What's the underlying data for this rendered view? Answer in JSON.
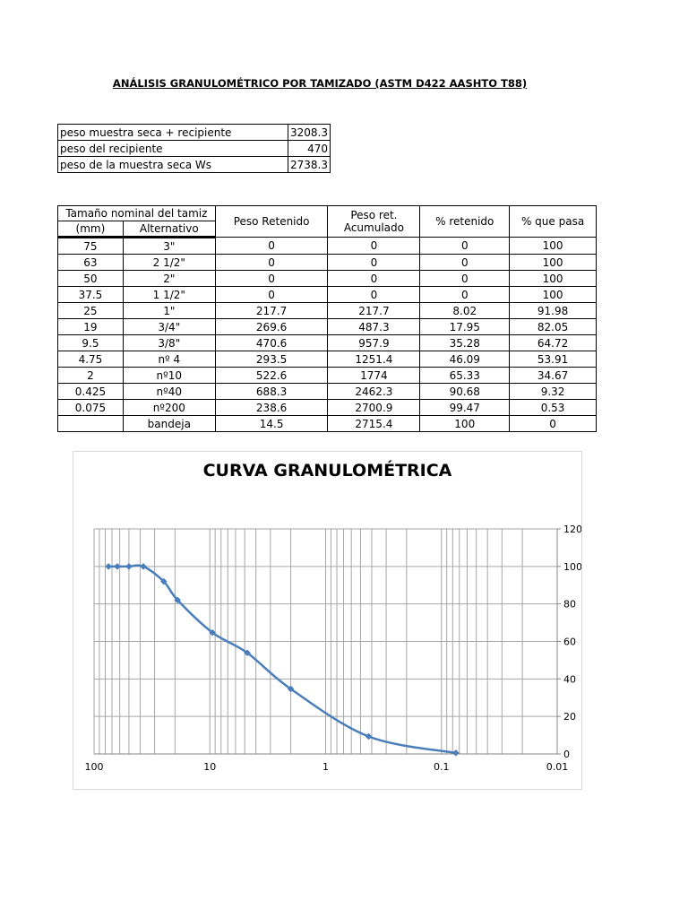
{
  "title": "ANÁLISIS GRANULOMÉTRICO POR TAMIZADO (ASTM D422 AASHTO T88)",
  "summary": [
    {
      "label": "peso muestra seca + recipiente",
      "value": "3208.3"
    },
    {
      "label": "peso del recipiente",
      "value": "470"
    },
    {
      "label": "peso de la muestra seca Ws",
      "value": "2738.3"
    }
  ],
  "table": {
    "headers": {
      "tamano": "Tamaño nominal del tamiz",
      "mm": "(mm)",
      "alternativo": "Alternativo",
      "peso_retenido": "Peso Retenido",
      "peso_acumulado": "Peso ret. Acumulado",
      "pct_retenido": "% retenido",
      "pct_pasa": "% que pasa"
    },
    "rows": [
      [
        "75",
        "3\"",
        "0",
        "0",
        "0",
        "100"
      ],
      [
        "63",
        "2 1/2\"",
        "0",
        "0",
        "0",
        "100"
      ],
      [
        "50",
        "2\"",
        "0",
        "0",
        "0",
        "100"
      ],
      [
        "37.5",
        "1 1/2\"",
        "0",
        "0",
        "0",
        "100"
      ],
      [
        "25",
        "1\"",
        "217.7",
        "217.7",
        "8.02",
        "91.98"
      ],
      [
        "19",
        "3/4\"",
        "269.6",
        "487.3",
        "17.95",
        "82.05"
      ],
      [
        "9.5",
        "3/8\"",
        "470.6",
        "957.9",
        "35.28",
        "64.72"
      ],
      [
        "4.75",
        "nº 4",
        "293.5",
        "1251.4",
        "46.09",
        "53.91"
      ],
      [
        "2",
        "nº10",
        "522.6",
        "1774",
        "65.33",
        "34.67"
      ],
      [
        "0.425",
        "nº40",
        "688.3",
        "2462.3",
        "90.68",
        "9.32"
      ],
      [
        "0.075",
        "nº200",
        "238.6",
        "2700.9",
        "99.47",
        "0.53"
      ],
      [
        "",
        "bandeja",
        "14.5",
        "2715.4",
        "100",
        "0"
      ]
    ]
  },
  "chart_data": {
    "type": "line",
    "title": "CURVA GRANULOMÉTRICA",
    "x_scale": "log",
    "x_reversed": true,
    "xlim": [
      100,
      0.01
    ],
    "ylim": [
      0,
      120
    ],
    "y_axis_position": "right",
    "grid": true,
    "x_ticks": [
      "100",
      "10",
      "1",
      "0.1",
      "0.01"
    ],
    "y_ticks": [
      "0",
      "20",
      "40",
      "60",
      "80",
      "100",
      "120"
    ],
    "series": [
      {
        "color": "#4a7ebb",
        "x": [
          75,
          63,
          50,
          37.5,
          25,
          19,
          9.5,
          4.75,
          2,
          0.425,
          0.075
        ],
        "y": [
          100,
          100,
          100,
          100,
          91.98,
          82.05,
          64.72,
          53.91,
          34.67,
          9.32,
          0.53
        ]
      }
    ]
  }
}
